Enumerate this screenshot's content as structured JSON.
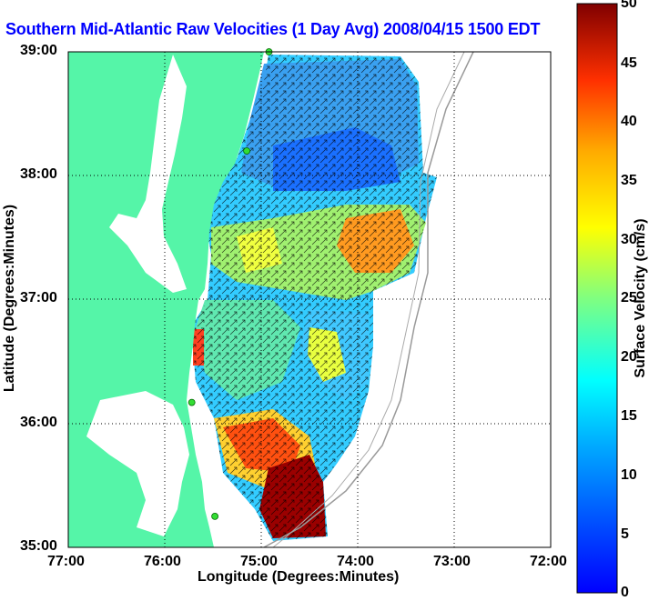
{
  "title": "Southern Mid-Atlantic Raw Velocities (1 Day Avg) 2008/04/15 1500 EDT",
  "axes": {
    "xlabel": "Longitude (Degrees:Minutes)",
    "ylabel": "Latitude (Degrees:Minutes)",
    "x_ticks": [
      "77:00",
      "76:00",
      "75:00",
      "74:00",
      "73:00",
      "72:00"
    ],
    "y_ticks": [
      "39:00",
      "38:00",
      "37:00",
      "36:00",
      "35:00"
    ]
  },
  "colorbar": {
    "label": "Surface Velocity (cm/s)",
    "ticks": [
      "50",
      "45",
      "40",
      "35",
      "30",
      "25",
      "20",
      "15",
      "10",
      "5",
      "0"
    ],
    "range": [
      0,
      50
    ],
    "colormap": "jet"
  },
  "colors": {
    "land": "#55f5a8",
    "water": "#ffffff",
    "title": "#0000ff",
    "station": "#33dd33"
  },
  "map_extent": {
    "lon_min": -77,
    "lon_max": -72,
    "lat_min": 35,
    "lat_max": 39
  },
  "stations": [
    {
      "name": "station-1",
      "lon": -74.92,
      "lat": 39.0
    },
    {
      "name": "station-2",
      "lon": -75.15,
      "lat": 38.2
    },
    {
      "name": "station-3",
      "lon": -75.72,
      "lat": 36.17
    },
    {
      "name": "station-4",
      "lon": -75.48,
      "lat": 35.25
    }
  ]
}
